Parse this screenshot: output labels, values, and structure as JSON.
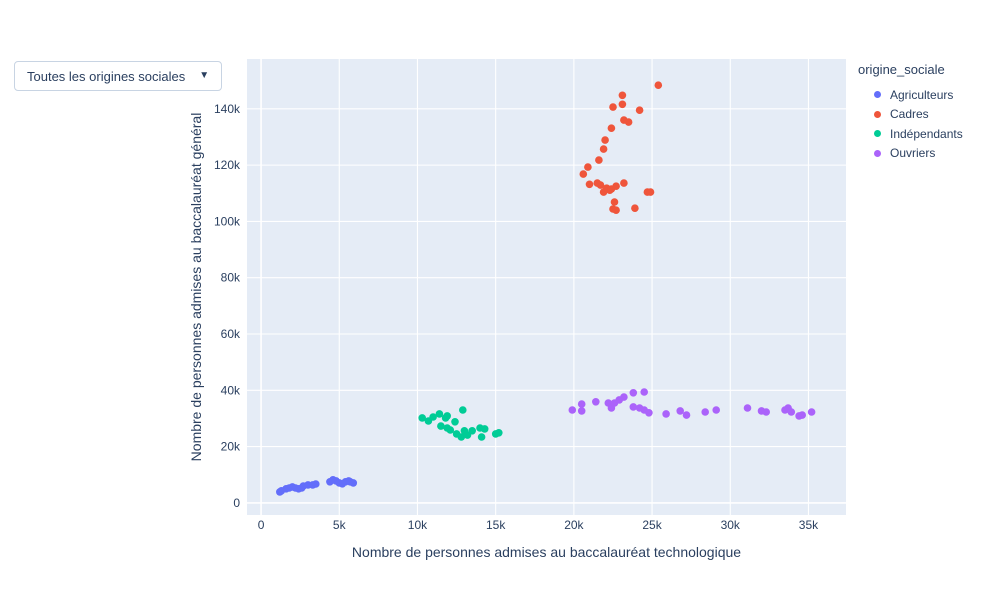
{
  "controls": {
    "origin_filter": {
      "label": "Toutes les origines sociales",
      "arrow": "▼"
    }
  },
  "legend": {
    "title": "origine_sociale",
    "items": [
      {
        "label": "Agriculteurs",
        "color": "#636efa"
      },
      {
        "label": "Cadres",
        "color": "#ef553b"
      },
      {
        "label": "Indépendants",
        "color": "#00cc96"
      },
      {
        "label": "Ouvriers",
        "color": "#ab63fa"
      }
    ]
  },
  "chart_data": {
    "type": "scatter",
    "title": "",
    "xlabel": "Nombre de personnes admises au baccalauréat technologique",
    "ylabel": "Nombre de personnes admises au baccalauréat général",
    "xlim": [
      -900,
      37400
    ],
    "ylim": [
      -4300,
      157700
    ],
    "grid": true,
    "legend_position": "right",
    "colors": {
      "plot_bg": "#e5ecf6",
      "grid": "#ffffff",
      "text": "#2a3f5f"
    },
    "x_ticks": [
      {
        "value": 0,
        "label": "0"
      },
      {
        "value": 5000,
        "label": "5k"
      },
      {
        "value": 10000,
        "label": "10k"
      },
      {
        "value": 15000,
        "label": "15k"
      },
      {
        "value": 20000,
        "label": "20k"
      },
      {
        "value": 25000,
        "label": "25k"
      },
      {
        "value": 30000,
        "label": "30k"
      },
      {
        "value": 35000,
        "label": "35k"
      }
    ],
    "y_ticks": [
      {
        "value": 0,
        "label": "0"
      },
      {
        "value": 20000,
        "label": "20k"
      },
      {
        "value": 40000,
        "label": "40k"
      },
      {
        "value": 60000,
        "label": "60k"
      },
      {
        "value": 80000,
        "label": "80k"
      },
      {
        "value": 100000,
        "label": "100k"
      },
      {
        "value": 120000,
        "label": "120k"
      },
      {
        "value": 140000,
        "label": "140k"
      }
    ],
    "series": [
      {
        "name": "Agriculteurs",
        "color": "#636efa",
        "points": [
          [
            1200,
            3900
          ],
          [
            1300,
            4300
          ],
          [
            1600,
            5000
          ],
          [
            1800,
            5300
          ],
          [
            2000,
            5700
          ],
          [
            2200,
            5300
          ],
          [
            2400,
            5000
          ],
          [
            2600,
            5300
          ],
          [
            2700,
            6000
          ],
          [
            3000,
            6400
          ],
          [
            3300,
            6400
          ],
          [
            3500,
            6700
          ],
          [
            4400,
            7500
          ],
          [
            4600,
            8200
          ],
          [
            4800,
            7800
          ],
          [
            5000,
            7100
          ],
          [
            5200,
            6800
          ],
          [
            5400,
            7500
          ],
          [
            5600,
            7800
          ],
          [
            5700,
            7500
          ],
          [
            5900,
            7100
          ]
        ]
      },
      {
        "name": "Cadres",
        "color": "#ef553b",
        "points": [
          [
            25400,
            148400
          ],
          [
            23100,
            144800
          ],
          [
            23100,
            141600
          ],
          [
            22500,
            140600
          ],
          [
            24200,
            139500
          ],
          [
            23200,
            136000
          ],
          [
            23500,
            135300
          ],
          [
            22400,
            133100
          ],
          [
            22000,
            128900
          ],
          [
            21900,
            125700
          ],
          [
            21600,
            121800
          ],
          [
            20900,
            119300
          ],
          [
            20600,
            116800
          ],
          [
            21000,
            113200
          ],
          [
            21500,
            113600
          ],
          [
            21700,
            112900
          ],
          [
            21900,
            110400
          ],
          [
            22300,
            111100
          ],
          [
            22700,
            112500
          ],
          [
            23200,
            113600
          ],
          [
            24700,
            110400
          ],
          [
            24900,
            110400
          ],
          [
            22600,
            106900
          ],
          [
            22500,
            104400
          ],
          [
            22700,
            104000
          ],
          [
            23900,
            104700
          ],
          [
            22100,
            111800
          ],
          [
            22400,
            111500
          ]
        ]
      },
      {
        "name": "Indépendants",
        "color": "#00cc96",
        "points": [
          [
            10300,
            30200
          ],
          [
            10700,
            29100
          ],
          [
            11000,
            30500
          ],
          [
            11400,
            31600
          ],
          [
            11800,
            30200
          ],
          [
            11900,
            30900
          ],
          [
            12900,
            33000
          ],
          [
            11500,
            27300
          ],
          [
            11900,
            26600
          ],
          [
            12100,
            25900
          ],
          [
            12400,
            28800
          ],
          [
            12500,
            24500
          ],
          [
            12800,
            23400
          ],
          [
            13000,
            25600
          ],
          [
            13200,
            24100
          ],
          [
            13500,
            25600
          ],
          [
            14000,
            26600
          ],
          [
            14300,
            26300
          ],
          [
            14100,
            23400
          ],
          [
            15000,
            24500
          ],
          [
            15200,
            24900
          ]
        ]
      },
      {
        "name": "Ouvriers",
        "color": "#ab63fa",
        "points": [
          [
            19900,
            33000
          ],
          [
            20500,
            35100
          ],
          [
            20500,
            32700
          ],
          [
            21400,
            35900
          ],
          [
            22200,
            35500
          ],
          [
            22400,
            33700
          ],
          [
            22600,
            35500
          ],
          [
            22900,
            36600
          ],
          [
            23200,
            37600
          ],
          [
            23800,
            39100
          ],
          [
            23800,
            34100
          ],
          [
            24200,
            33700
          ],
          [
            24500,
            39400
          ],
          [
            24500,
            33000
          ],
          [
            24800,
            32000
          ],
          [
            25900,
            31600
          ],
          [
            26800,
            32700
          ],
          [
            27200,
            31200
          ],
          [
            28400,
            32300
          ],
          [
            29100,
            33000
          ],
          [
            31100,
            33700
          ],
          [
            32000,
            32700
          ],
          [
            32300,
            32300
          ],
          [
            33500,
            33000
          ],
          [
            33700,
            33700
          ],
          [
            33900,
            32300
          ],
          [
            34400,
            30900
          ],
          [
            34600,
            31200
          ],
          [
            35200,
            32300
          ]
        ]
      }
    ]
  }
}
